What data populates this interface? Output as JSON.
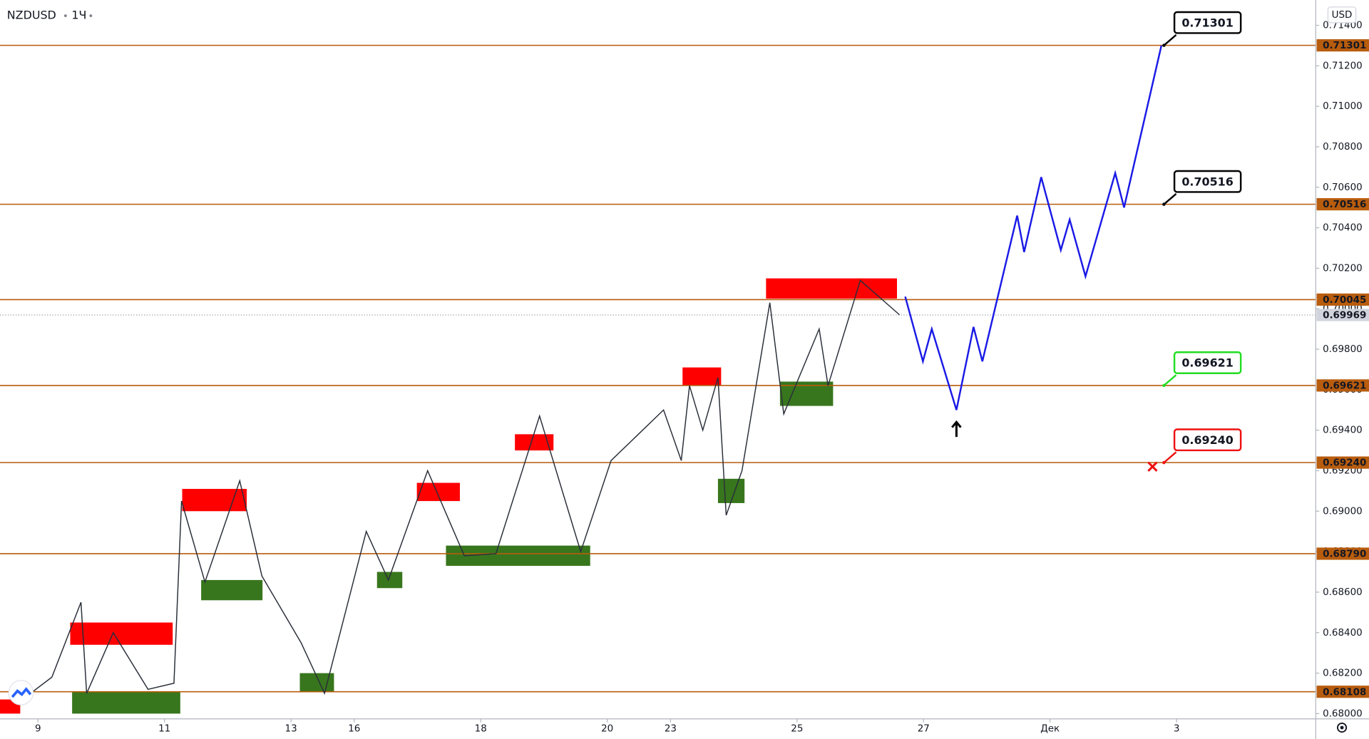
{
  "chart_data": {
    "type": "line",
    "title": "NZDUSD",
    "interval": "1Ч",
    "currency": "USD",
    "xlim": [
      -0.6,
      20.2
    ],
    "xticks": [
      {
        "value": 0,
        "label": "9"
      },
      {
        "value": 2,
        "label": "11"
      },
      {
        "value": 4,
        "label": "13"
      },
      {
        "value": 5,
        "label": "16"
      },
      {
        "value": 7,
        "label": "18"
      },
      {
        "value": 9,
        "label": "20"
      },
      {
        "value": 10,
        "label": "23"
      },
      {
        "value": 12,
        "label": "25"
      },
      {
        "value": 14,
        "label": "27"
      },
      {
        "value": 16,
        "label": "Дек"
      },
      {
        "value": 18,
        "label": "3"
      }
    ],
    "ylim": [
      0.67974,
      0.71525
    ],
    "yticks": [
      {
        "value": 0.68,
        "label": "0.68000"
      },
      {
        "value": 0.682,
        "label": "0.68200"
      },
      {
        "value": 0.684,
        "label": "0.68400"
      },
      {
        "value": 0.686,
        "label": "0.68600"
      },
      {
        "value": 0.688,
        "label": "0.68800"
      },
      {
        "value": 0.69,
        "label": "0.69000"
      },
      {
        "value": 0.692,
        "label": "0.69200"
      },
      {
        "value": 0.694,
        "label": "0.69400"
      },
      {
        "value": 0.696,
        "label": "0.69600"
      },
      {
        "value": 0.698,
        "label": "0.69800"
      },
      {
        "value": 0.7,
        "label": "0.70000"
      },
      {
        "value": 0.702,
        "label": "0.70200"
      },
      {
        "value": 0.704,
        "label": "0.70400"
      },
      {
        "value": 0.706,
        "label": "0.70600"
      },
      {
        "value": 0.708,
        "label": "0.70800"
      },
      {
        "value": 0.71,
        "label": "0.71000"
      },
      {
        "value": 0.712,
        "label": "0.71200"
      },
      {
        "value": 0.714,
        "label": "0.71400"
      }
    ],
    "zones": [
      {
        "color": "#ff0000",
        "x": [
          -0.6,
          -0.28
        ],
        "y": [
          0.68,
          0.6807
        ]
      },
      {
        "color": "#ff0000",
        "x": [
          0.51,
          2.13
        ],
        "y": [
          0.6834,
          0.6845
        ]
      },
      {
        "color": "#ff0000",
        "x": [
          2.28,
          3.3
        ],
        "y": [
          0.69,
          0.6911
        ]
      },
      {
        "color": "#ff0000",
        "x": [
          5.99,
          6.67
        ],
        "y": [
          0.6905,
          0.6914
        ]
      },
      {
        "color": "#ff0000",
        "x": [
          7.54,
          8.15
        ],
        "y": [
          0.693,
          0.6938
        ]
      },
      {
        "color": "#ff0000",
        "x": [
          10.19,
          10.8
        ],
        "y": [
          0.6962,
          0.6971
        ]
      },
      {
        "color": "#ff0000",
        "x": [
          11.51,
          13.58
        ],
        "y": [
          0.7005,
          0.7015
        ]
      },
      {
        "color": "#38761d",
        "x": [
          0.54,
          2.25
        ],
        "y": [
          0.68,
          0.6811
        ]
      },
      {
        "color": "#38761d",
        "x": [
          2.58,
          3.55
        ],
        "y": [
          0.6856,
          0.6866
        ]
      },
      {
        "color": "#38761d",
        "x": [
          4.14,
          4.68
        ],
        "y": [
          0.6811,
          0.682
        ]
      },
      {
        "color": "#38761d",
        "x": [
          5.36,
          5.76
        ],
        "y": [
          0.6862,
          0.687
        ]
      },
      {
        "color": "#38761d",
        "x": [
          6.45,
          8.73
        ],
        "y": [
          0.6873,
          0.6883
        ]
      },
      {
        "color": "#38761d",
        "x": [
          10.75,
          11.17
        ],
        "y": [
          0.6904,
          0.6916
        ]
      },
      {
        "color": "#38761d",
        "x": [
          11.73,
          12.57
        ],
        "y": [
          0.6952,
          0.6964
        ]
      }
    ],
    "levels": [
      {
        "value": 0.71301,
        "label": "0.71301"
      },
      {
        "value": 0.70516,
        "label": "0.70516"
      },
      {
        "value": 0.70045,
        "label": "0.70045"
      },
      {
        "value": 0.69621,
        "label": "0.69621"
      },
      {
        "value": 0.6924,
        "label": "0.69240"
      },
      {
        "value": 0.6879,
        "label": "0.68790"
      },
      {
        "value": 0.68108,
        "label": "0.68108"
      }
    ],
    "level_color": "#b85c0e",
    "last_price": {
      "value": 0.69969,
      "label": "0.69969"
    },
    "series": [
      {
        "color": "#2a2e39",
        "x": [
          -0.33,
          0.22,
          0.68,
          0.77,
          1.19,
          1.74,
          2.15,
          2.27,
          2.64,
          3.19,
          3.54,
          4.16,
          4.53,
          5.19,
          5.54,
          6.16,
          6.74,
          7.24,
          7.93,
          8.58,
          9.06,
          9.89,
          10.17,
          10.3,
          10.51,
          10.75,
          10.88,
          11.13,
          11.57,
          11.79,
          12.35,
          12.49,
          13.0,
          13.62
        ],
        "values": [
          0.6805,
          0.6818,
          0.6855,
          0.681,
          0.684,
          0.6812,
          0.6815,
          0.6905,
          0.6865,
          0.6915,
          0.6868,
          0.6835,
          0.681,
          0.689,
          0.6866,
          0.692,
          0.6878,
          0.6879,
          0.6947,
          0.688,
          0.6925,
          0.695,
          0.6925,
          0.6962,
          0.694,
          0.6966,
          0.6898,
          0.692,
          0.7003,
          0.6948,
          0.699,
          0.6962,
          0.7014,
          0.6997
        ]
      },
      {
        "color": "#1a1ae6",
        "x": [
          13.71,
          13.99,
          14.13,
          14.52,
          14.79,
          14.93,
          15.48,
          15.59,
          15.86,
          16.17,
          16.31,
          16.56,
          17.03,
          17.17,
          17.76
        ],
        "values": [
          0.7006,
          0.6974,
          0.699,
          0.695,
          0.6991,
          0.6974,
          0.7046,
          0.7028,
          0.7065,
          0.7029,
          0.7044,
          0.7016,
          0.7067,
          0.705,
          0.713
        ]
      }
    ],
    "callouts": [
      {
        "x": 17.8,
        "value": 0.71301,
        "label": "0.71301",
        "color": "#000000"
      },
      {
        "x": 17.8,
        "value": 0.70516,
        "label": "0.70516",
        "color": "#000000"
      },
      {
        "x": 17.8,
        "value": 0.69621,
        "label": "0.69621",
        "color": "#22dd22"
      },
      {
        "x": 17.8,
        "value": 0.6924,
        "label": "0.69240",
        "color": "#ee1111"
      }
    ],
    "markers": [
      {
        "shape": "arrow-up",
        "x": 14.52,
        "y": 0.6944,
        "color": "#000000"
      },
      {
        "shape": "cross",
        "x": 17.62,
        "y": 0.6922,
        "color": "#ee1111"
      }
    ]
  }
}
